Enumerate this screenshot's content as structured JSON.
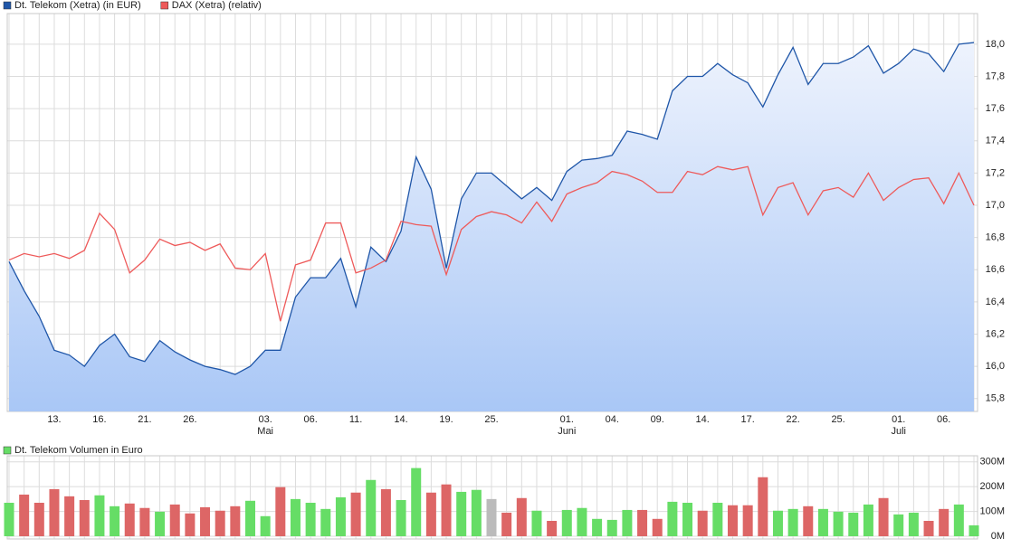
{
  "chart_data": [
    {
      "type": "line",
      "legend": "top-left",
      "categories": [
        null,
        null,
        null,
        "13.",
        null,
        null,
        "16.",
        null,
        null,
        "21.",
        null,
        null,
        "26.",
        null,
        null,
        null,
        null,
        "03.",
        null,
        null,
        "06.",
        null,
        null,
        "11.",
        null,
        null,
        "14.",
        null,
        null,
        "19.",
        null,
        null,
        "25.",
        null,
        null,
        null,
        null,
        "01.",
        null,
        null,
        "04.",
        null,
        null,
        "09.",
        null,
        null,
        "14.",
        null,
        null,
        "17.",
        null,
        null,
        "22.",
        null,
        null,
        "25.",
        null,
        null,
        null,
        "01.",
        null,
        null,
        "06.",
        null,
        null
      ],
      "month_labels": [
        null,
        null,
        null,
        null,
        null,
        null,
        null,
        null,
        null,
        null,
        null,
        null,
        null,
        null,
        null,
        null,
        null,
        "Mai",
        null,
        null,
        null,
        null,
        null,
        null,
        null,
        null,
        null,
        null,
        null,
        null,
        null,
        null,
        null,
        null,
        null,
        null,
        null,
        "Juni",
        null,
        null,
        null,
        null,
        null,
        null,
        null,
        null,
        null,
        null,
        null,
        null,
        null,
        null,
        null,
        null,
        null,
        null,
        null,
        null,
        null,
        "Juli",
        null,
        null,
        null,
        null,
        null
      ],
      "ylim": [
        15.72,
        18.19
      ],
      "yticks": [
        {
          "value": 15.8,
          "label": "15,8"
        },
        {
          "value": 16,
          "label": "16,0"
        },
        {
          "value": 16.2,
          "label": "16,2"
        },
        {
          "value": 16.4,
          "label": "16,4"
        },
        {
          "value": 16.6,
          "label": "16,6"
        },
        {
          "value": 16.8,
          "label": "16,8"
        },
        {
          "value": 17,
          "label": "17,0"
        },
        {
          "value": 17.2,
          "label": "17,2"
        },
        {
          "value": 17.4,
          "label": "17,4"
        },
        {
          "value": 17.6,
          "label": "17,6"
        },
        {
          "value": 17.8,
          "label": "17,8"
        },
        {
          "value": 18,
          "label": "18,0"
        }
      ],
      "grid": true,
      "series": [
        {
          "name": "Dt. Telekom (Xetra) (in EUR)",
          "color": "#1f56a8",
          "area": true,
          "values": [
            16.65,
            16.47,
            16.31,
            16.1,
            16.07,
            16.0,
            16.13,
            16.2,
            16.06,
            16.03,
            16.16,
            16.09,
            16.04,
            16.0,
            15.98,
            15.95,
            16.0,
            16.1,
            16.1,
            16.43,
            16.55,
            16.55,
            16.67,
            16.37,
            16.74,
            16.65,
            16.84,
            17.3,
            17.1,
            16.61,
            17.04,
            17.2,
            17.2,
            17.12,
            17.04,
            17.11,
            17.03,
            17.21,
            17.28,
            17.29,
            17.31,
            17.46,
            17.44,
            17.41,
            17.71,
            17.8,
            17.8,
            17.88,
            17.81,
            17.76,
            17.61,
            17.81,
            17.98,
            17.75,
            17.88,
            17.88,
            17.92,
            17.99,
            17.82,
            17.88,
            17.97,
            17.94,
            17.83,
            18.0,
            18.01
          ]
        },
        {
          "name": "DAX (Xetra) (relativ)",
          "color": "#ee5a5a",
          "area": false,
          "values": [
            16.66,
            16.7,
            16.68,
            16.7,
            16.67,
            16.72,
            16.95,
            16.85,
            16.58,
            16.66,
            16.79,
            16.75,
            16.77,
            16.72,
            16.76,
            16.61,
            16.6,
            16.7,
            16.28,
            16.63,
            16.66,
            16.89,
            16.89,
            16.58,
            16.61,
            16.66,
            16.9,
            16.88,
            16.87,
            16.57,
            16.85,
            16.93,
            16.96,
            16.94,
            16.89,
            17.02,
            16.9,
            17.07,
            17.11,
            17.14,
            17.21,
            17.19,
            17.15,
            17.08,
            17.08,
            17.21,
            17.19,
            17.24,
            17.22,
            17.24,
            16.94,
            17.11,
            17.14,
            16.94,
            17.09,
            17.11,
            17.05,
            17.2,
            17.03,
            17.11,
            17.16,
            17.17,
            17.01,
            17.2,
            17.0
          ]
        }
      ]
    },
    {
      "type": "bar",
      "legend": "top-left",
      "ylim": [
        0,
        310
      ],
      "yticks": [
        {
          "value": 0,
          "label": "0M"
        },
        {
          "value": 100,
          "label": "100M"
        },
        {
          "value": 200,
          "label": "200M"
        },
        {
          "value": 300,
          "label": "300M"
        }
      ],
      "grid": true,
      "series": [
        {
          "name": "Dt. Telekom Volumen in Euro",
          "color": "#66dd66",
          "values": [
            135,
            168,
            135,
            190,
            161,
            146,
            165,
            121,
            132,
            114,
            99,
            128,
            92,
            117,
            103,
            121,
            143,
            81,
            198,
            150,
            135,
            110,
            157,
            176,
            227,
            190,
            146,
            275,
            176,
            209,
            179,
            187,
            150,
            95,
            154,
            103,
            62,
            106,
            114,
            70,
            66,
            106,
            106,
            70,
            139,
            135,
            103,
            135,
            125,
            125,
            238,
            103,
            110,
            121,
            110,
            99,
            95,
            128,
            154,
            88,
            95,
            62,
            110,
            128,
            44
          ],
          "colors": [
            "#66dd66",
            "#dd6666",
            "#dd6666",
            "#dd6666",
            "#dd6666",
            "#dd6666",
            "#66dd66",
            "#66dd66",
            "#dd6666",
            "#dd6666",
            "#66dd66",
            "#dd6666",
            "#dd6666",
            "#dd6666",
            "#dd6666",
            "#dd6666",
            "#66dd66",
            "#66dd66",
            "#dd6666",
            "#66dd66",
            "#66dd66",
            "#66dd66",
            "#66dd66",
            "#dd6666",
            "#66dd66",
            "#dd6666",
            "#66dd66",
            "#66dd66",
            "#dd6666",
            "#dd6666",
            "#66dd66",
            "#66dd66",
            "#bbbbbb",
            "#dd6666",
            "#dd6666",
            "#66dd66",
            "#dd6666",
            "#66dd66",
            "#66dd66",
            "#66dd66",
            "#66dd66",
            "#66dd66",
            "#dd6666",
            "#dd6666",
            "#66dd66",
            "#66dd66",
            "#dd6666",
            "#66dd66",
            "#dd6666",
            "#dd6666",
            "#dd6666",
            "#66dd66",
            "#66dd66",
            "#dd6666",
            "#66dd66",
            "#66dd66",
            "#66dd66",
            "#66dd66",
            "#dd6666",
            "#66dd66",
            "#66dd66",
            "#dd6666",
            "#dd6666",
            "#66dd66",
            "#66dd66"
          ]
        }
      ]
    }
  ]
}
